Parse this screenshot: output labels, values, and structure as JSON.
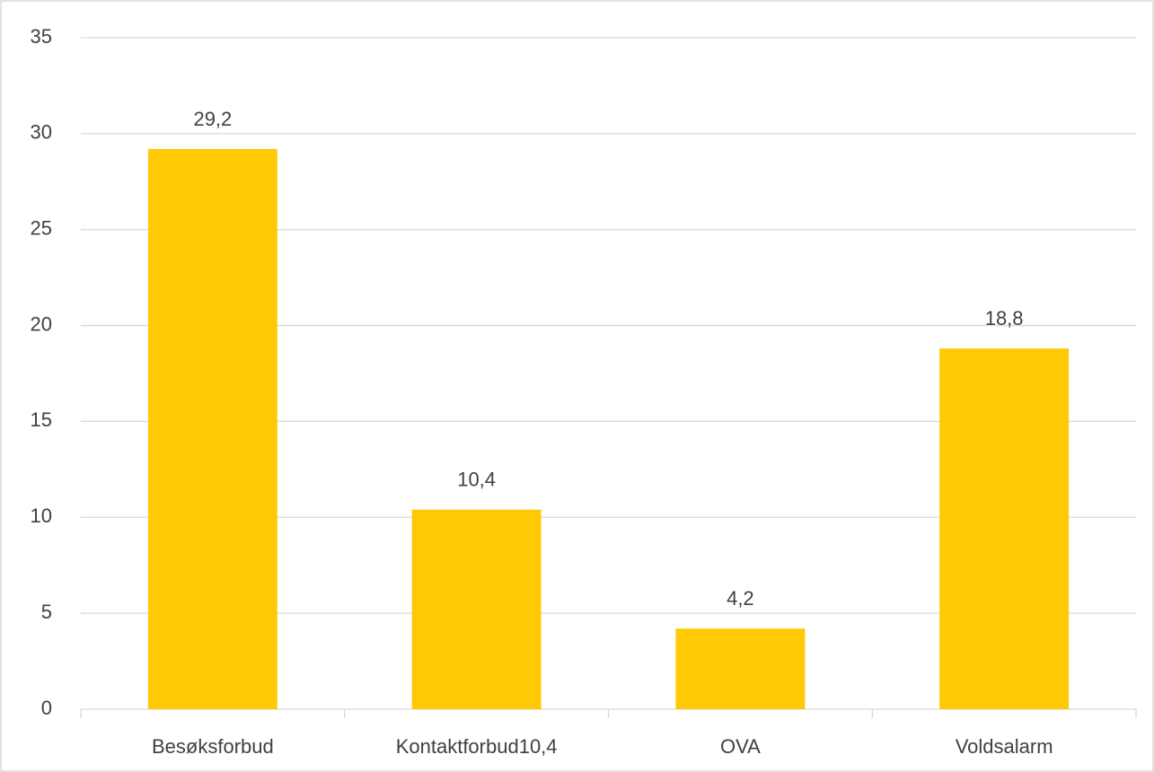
{
  "chart_data": {
    "type": "bar",
    "categories": [
      "Besøksforbud",
      "Kontaktforbud10,4",
      "OVA",
      "Voldsalarm"
    ],
    "values": [
      29.2,
      10.4,
      4.2,
      18.8
    ],
    "value_labels": [
      "29,2",
      "10,4",
      "4,2",
      "18,8"
    ],
    "color": "#ffc906",
    "ylim": [
      0,
      35
    ],
    "yticks": [
      0,
      5,
      10,
      15,
      20,
      25,
      30,
      35
    ],
    "grid": true
  }
}
